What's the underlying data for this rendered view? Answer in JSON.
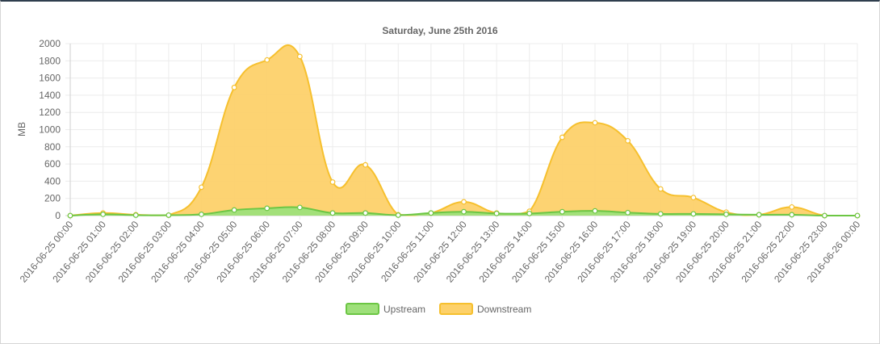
{
  "chart_data": {
    "type": "area",
    "title": "Saturday, June 25th 2016",
    "xlabel": "",
    "ylabel": "MB",
    "ylim": [
      0,
      2000
    ],
    "yticks": [
      "0",
      "200",
      "400",
      "600",
      "800",
      "1000",
      "1200",
      "1400",
      "1600",
      "1800",
      "2000"
    ],
    "grid": true,
    "legend": "bottom",
    "x": [
      "2016-06-25 00:00",
      "2016-06-25 01:00",
      "2016-06-25 02:00",
      "2016-06-25 03:00",
      "2016-06-25 04:00",
      "2016-06-25 05:00",
      "2016-06-25 06:00",
      "2016-06-25 07:00",
      "2016-06-25 08:00",
      "2016-06-25 09:00",
      "2016-06-25 10:00",
      "2016-06-25 11:00",
      "2016-06-25 12:00",
      "2016-06-25 13:00",
      "2016-06-25 14:00",
      "2016-06-25 15:00",
      "2016-06-25 16:00",
      "2016-06-25 17:00",
      "2016-06-25 18:00",
      "2016-06-25 19:00",
      "2016-06-25 20:00",
      "2016-06-25 21:00",
      "2016-06-25 22:00",
      "2016-06-25 23:00",
      "2016-06-26 00:00"
    ],
    "series": [
      {
        "name": "Upstream",
        "fill": "#9ee07a",
        "stroke": "#6cc644",
        "values": [
          0,
          15,
          5,
          5,
          15,
          65,
          85,
          95,
          30,
          30,
          5,
          30,
          45,
          25,
          25,
          45,
          55,
          35,
          20,
          20,
          15,
          10,
          10,
          0,
          0
        ]
      },
      {
        "name": "Downstream",
        "fill": "#fdd16a",
        "stroke": "#f6c02e",
        "values": [
          0,
          30,
          10,
          5,
          330,
          1490,
          1810,
          1850,
          390,
          590,
          10,
          30,
          160,
          30,
          50,
          910,
          1080,
          870,
          310,
          210,
          40,
          10,
          100,
          0,
          0
        ]
      }
    ]
  }
}
